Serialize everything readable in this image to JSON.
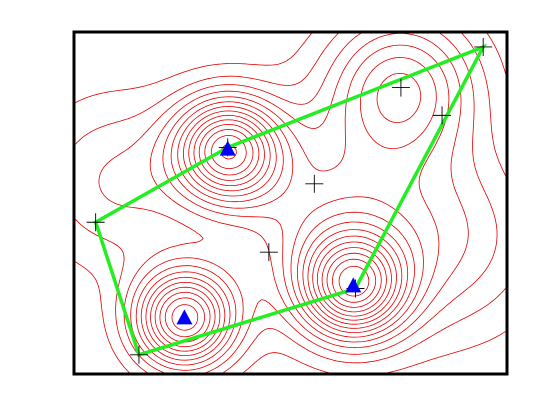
{
  "chart_data": {
    "type": "contour",
    "title": "",
    "xlabel": "",
    "ylabel": "",
    "xlim": [
      0,
      10
    ],
    "ylim": [
      0,
      8
    ],
    "axis_ticks_visible": false,
    "grid": false,
    "legend": "none",
    "contour_levels": 9,
    "peaks": [
      {
        "x": 3.55,
        "y": 5.25,
        "height": 1.0,
        "spread": 0.85
      },
      {
        "x": 6.45,
        "y": 2.05,
        "height": 1.0,
        "spread": 0.85
      },
      {
        "x": 2.55,
        "y": 1.3,
        "height": 1.0,
        "spread": 0.8
      },
      {
        "x": 7.55,
        "y": 6.7,
        "height": 0.55,
        "spread": 1.2
      },
      {
        "x": 5.6,
        "y": 3.7,
        "height": 0.35,
        "spread": 1.6
      },
      {
        "x": 1.0,
        "y": 4.5,
        "height": 0.25,
        "spread": 1.4
      },
      {
        "x": 8.6,
        "y": 3.2,
        "height": 0.3,
        "spread": 1.6
      }
    ],
    "markers_triangle": [
      {
        "x": 3.55,
        "y": 5.25
      },
      {
        "x": 6.45,
        "y": 2.05
      },
      {
        "x": 2.55,
        "y": 1.3
      }
    ],
    "markers_plus": [
      {
        "x": 9.45,
        "y": 7.65
      },
      {
        "x": 7.55,
        "y": 6.7
      },
      {
        "x": 8.5,
        "y": 6.05
      },
      {
        "x": 3.55,
        "y": 5.3
      },
      {
        "x": 5.55,
        "y": 4.45
      },
      {
        "x": 0.5,
        "y": 3.55
      },
      {
        "x": 4.5,
        "y": 2.85
      },
      {
        "x": 6.5,
        "y": 2.0
      },
      {
        "x": 1.5,
        "y": 0.45
      }
    ],
    "polygon": [
      {
        "x": 9.45,
        "y": 7.65
      },
      {
        "x": 3.55,
        "y": 5.3
      },
      {
        "x": 0.5,
        "y": 3.55
      },
      {
        "x": 1.5,
        "y": 0.45
      },
      {
        "x": 6.5,
        "y": 2.0
      }
    ],
    "colors": {
      "contour": "#e00000",
      "triangle": "#0000ff",
      "polygon": "#22ee22",
      "plus": "#000000",
      "frame": "#000000"
    }
  }
}
